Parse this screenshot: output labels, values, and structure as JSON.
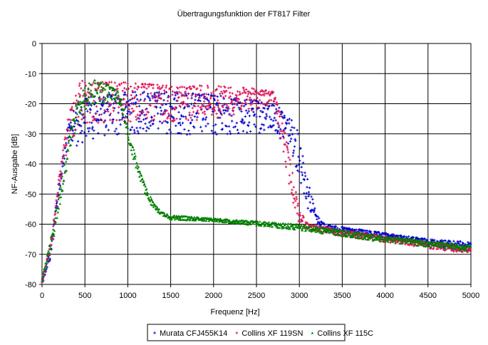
{
  "chart_data": {
    "type": "scatter",
    "title": "Übertragungsfunktion der FT817 Filter",
    "xlabel": "Frequenz [Hz]",
    "ylabel": "NF-Ausgabe [dB]",
    "xlim": [
      0,
      5000
    ],
    "ylim": [
      -80,
      0
    ],
    "xticks": [
      0,
      500,
      1000,
      1500,
      2000,
      2500,
      3000,
      3500,
      4000,
      4500,
      5000
    ],
    "yticks": [
      0,
      -10,
      -20,
      -30,
      -40,
      -50,
      -60,
      -70,
      -80
    ],
    "grid": true,
    "legend_position": "bottom",
    "series": [
      {
        "name": "Murata CFJ455K14",
        "color": "#0000cc",
        "marker": "plus",
        "x": [
          0,
          100,
          200,
          300,
          400,
          500,
          1000,
          1500,
          2000,
          2500,
          2700,
          2800,
          2900,
          3000,
          3100,
          3200,
          3300,
          3500,
          4000,
          4500,
          5000
        ],
        "upper": [
          -78,
          -68,
          -45,
          -28,
          -20,
          -18,
          -16,
          -16,
          -17,
          -19,
          -20,
          -22,
          -25,
          -30,
          -45,
          -57,
          -60,
          -61,
          -63,
          -65,
          -66
        ],
        "lower": [
          -80,
          -72,
          -50,
          -34,
          -35,
          -32,
          -30,
          -30,
          -31,
          -30,
          -30,
          -32,
          -35,
          -45,
          -55,
          -60,
          -62,
          -63,
          -65,
          -67,
          -69
        ]
      },
      {
        "name": "Collins XF 119SN",
        "color": "#dd1155",
        "marker": "plus",
        "x": [
          0,
          100,
          200,
          300,
          400,
          450,
          500,
          1000,
          1500,
          2000,
          2500,
          2700,
          2800,
          2900,
          3000,
          3100,
          3500,
          4000,
          4500,
          5000
        ],
        "upper": [
          -78,
          -66,
          -44,
          -25,
          -14,
          -12,
          -12.5,
          -13,
          -14,
          -14,
          -15,
          -16,
          -25,
          -40,
          -55,
          -60,
          -62,
          -64,
          -66,
          -68
        ],
        "lower": [
          -80,
          -70,
          -48,
          -35,
          -30,
          -28,
          -27,
          -27,
          -26,
          -25,
          -22,
          -20,
          -35,
          -50,
          -60,
          -62,
          -64,
          -66,
          -68,
          -70
        ]
      },
      {
        "name": "Collins XF 115C",
        "color": "#008000",
        "marker": "triangle",
        "x": [
          0,
          100,
          200,
          300,
          400,
          500,
          600,
          700,
          800,
          900,
          950,
          1000,
          1100,
          1200,
          1300,
          1400,
          1500,
          2000,
          2500,
          3000,
          3500,
          4000,
          4500,
          5000
        ],
        "upper": [
          -78,
          -65,
          -50,
          -33,
          -20,
          -14,
          -12,
          -13,
          -14,
          -16,
          -20,
          -28,
          -38,
          -47,
          -53,
          -56,
          -57,
          -58,
          -59,
          -60,
          -62,
          -64,
          -65.5,
          -67
        ],
        "lower": [
          -80,
          -70,
          -55,
          -40,
          -28,
          -22,
          -20,
          -20,
          -19,
          -20,
          -25,
          -32,
          -42,
          -50,
          -55,
          -57,
          -58.5,
          -59,
          -60.5,
          -62,
          -64,
          -66,
          -67.5,
          -69
        ]
      }
    ]
  }
}
